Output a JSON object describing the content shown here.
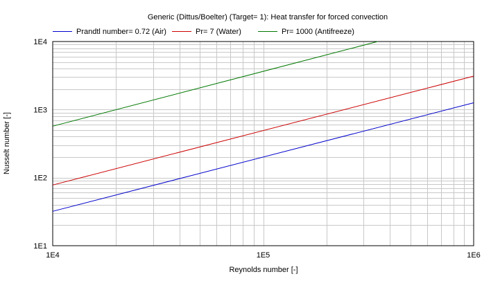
{
  "chart_data": {
    "type": "line",
    "title": "Generic (Dittus/Boelter) (Target= 1): Heat transfer for forced convection",
    "xlabel": "Reynolds number [-]",
    "ylabel": "Nusselt number [-]",
    "x_scale": "log",
    "y_scale": "log",
    "xlim": [
      10000,
      1000000
    ],
    "ylim": [
      10,
      10000
    ],
    "x_ticks": [
      {
        "value": 10000,
        "label": "1E4"
      },
      {
        "value": 100000,
        "label": "1E5"
      },
      {
        "value": 1000000,
        "label": "1E6"
      }
    ],
    "y_ticks": [
      {
        "value": 10,
        "label": "1E1"
      },
      {
        "value": 100,
        "label": "1E2"
      },
      {
        "value": 1000,
        "label": "1E3"
      },
      {
        "value": 10000,
        "label": "1E4"
      }
    ],
    "grid": true,
    "legend_position": "top",
    "series": [
      {
        "name": "Prandtl number= 0.72 (Air)",
        "color": "#0000cc",
        "x": [
          10000,
          1000000
        ],
        "y": [
          32,
          1260
        ]
      },
      {
        "name": "Pr= 7 (Water)",
        "color": "#cc0000",
        "x": [
          10000,
          1000000
        ],
        "y": [
          78,
          3100
        ]
      },
      {
        "name": "Pr= 1000 (Antifreeze)",
        "color": "#007700",
        "x": [
          10000,
          350000
        ],
        "y": [
          570,
          10000
        ]
      }
    ]
  }
}
